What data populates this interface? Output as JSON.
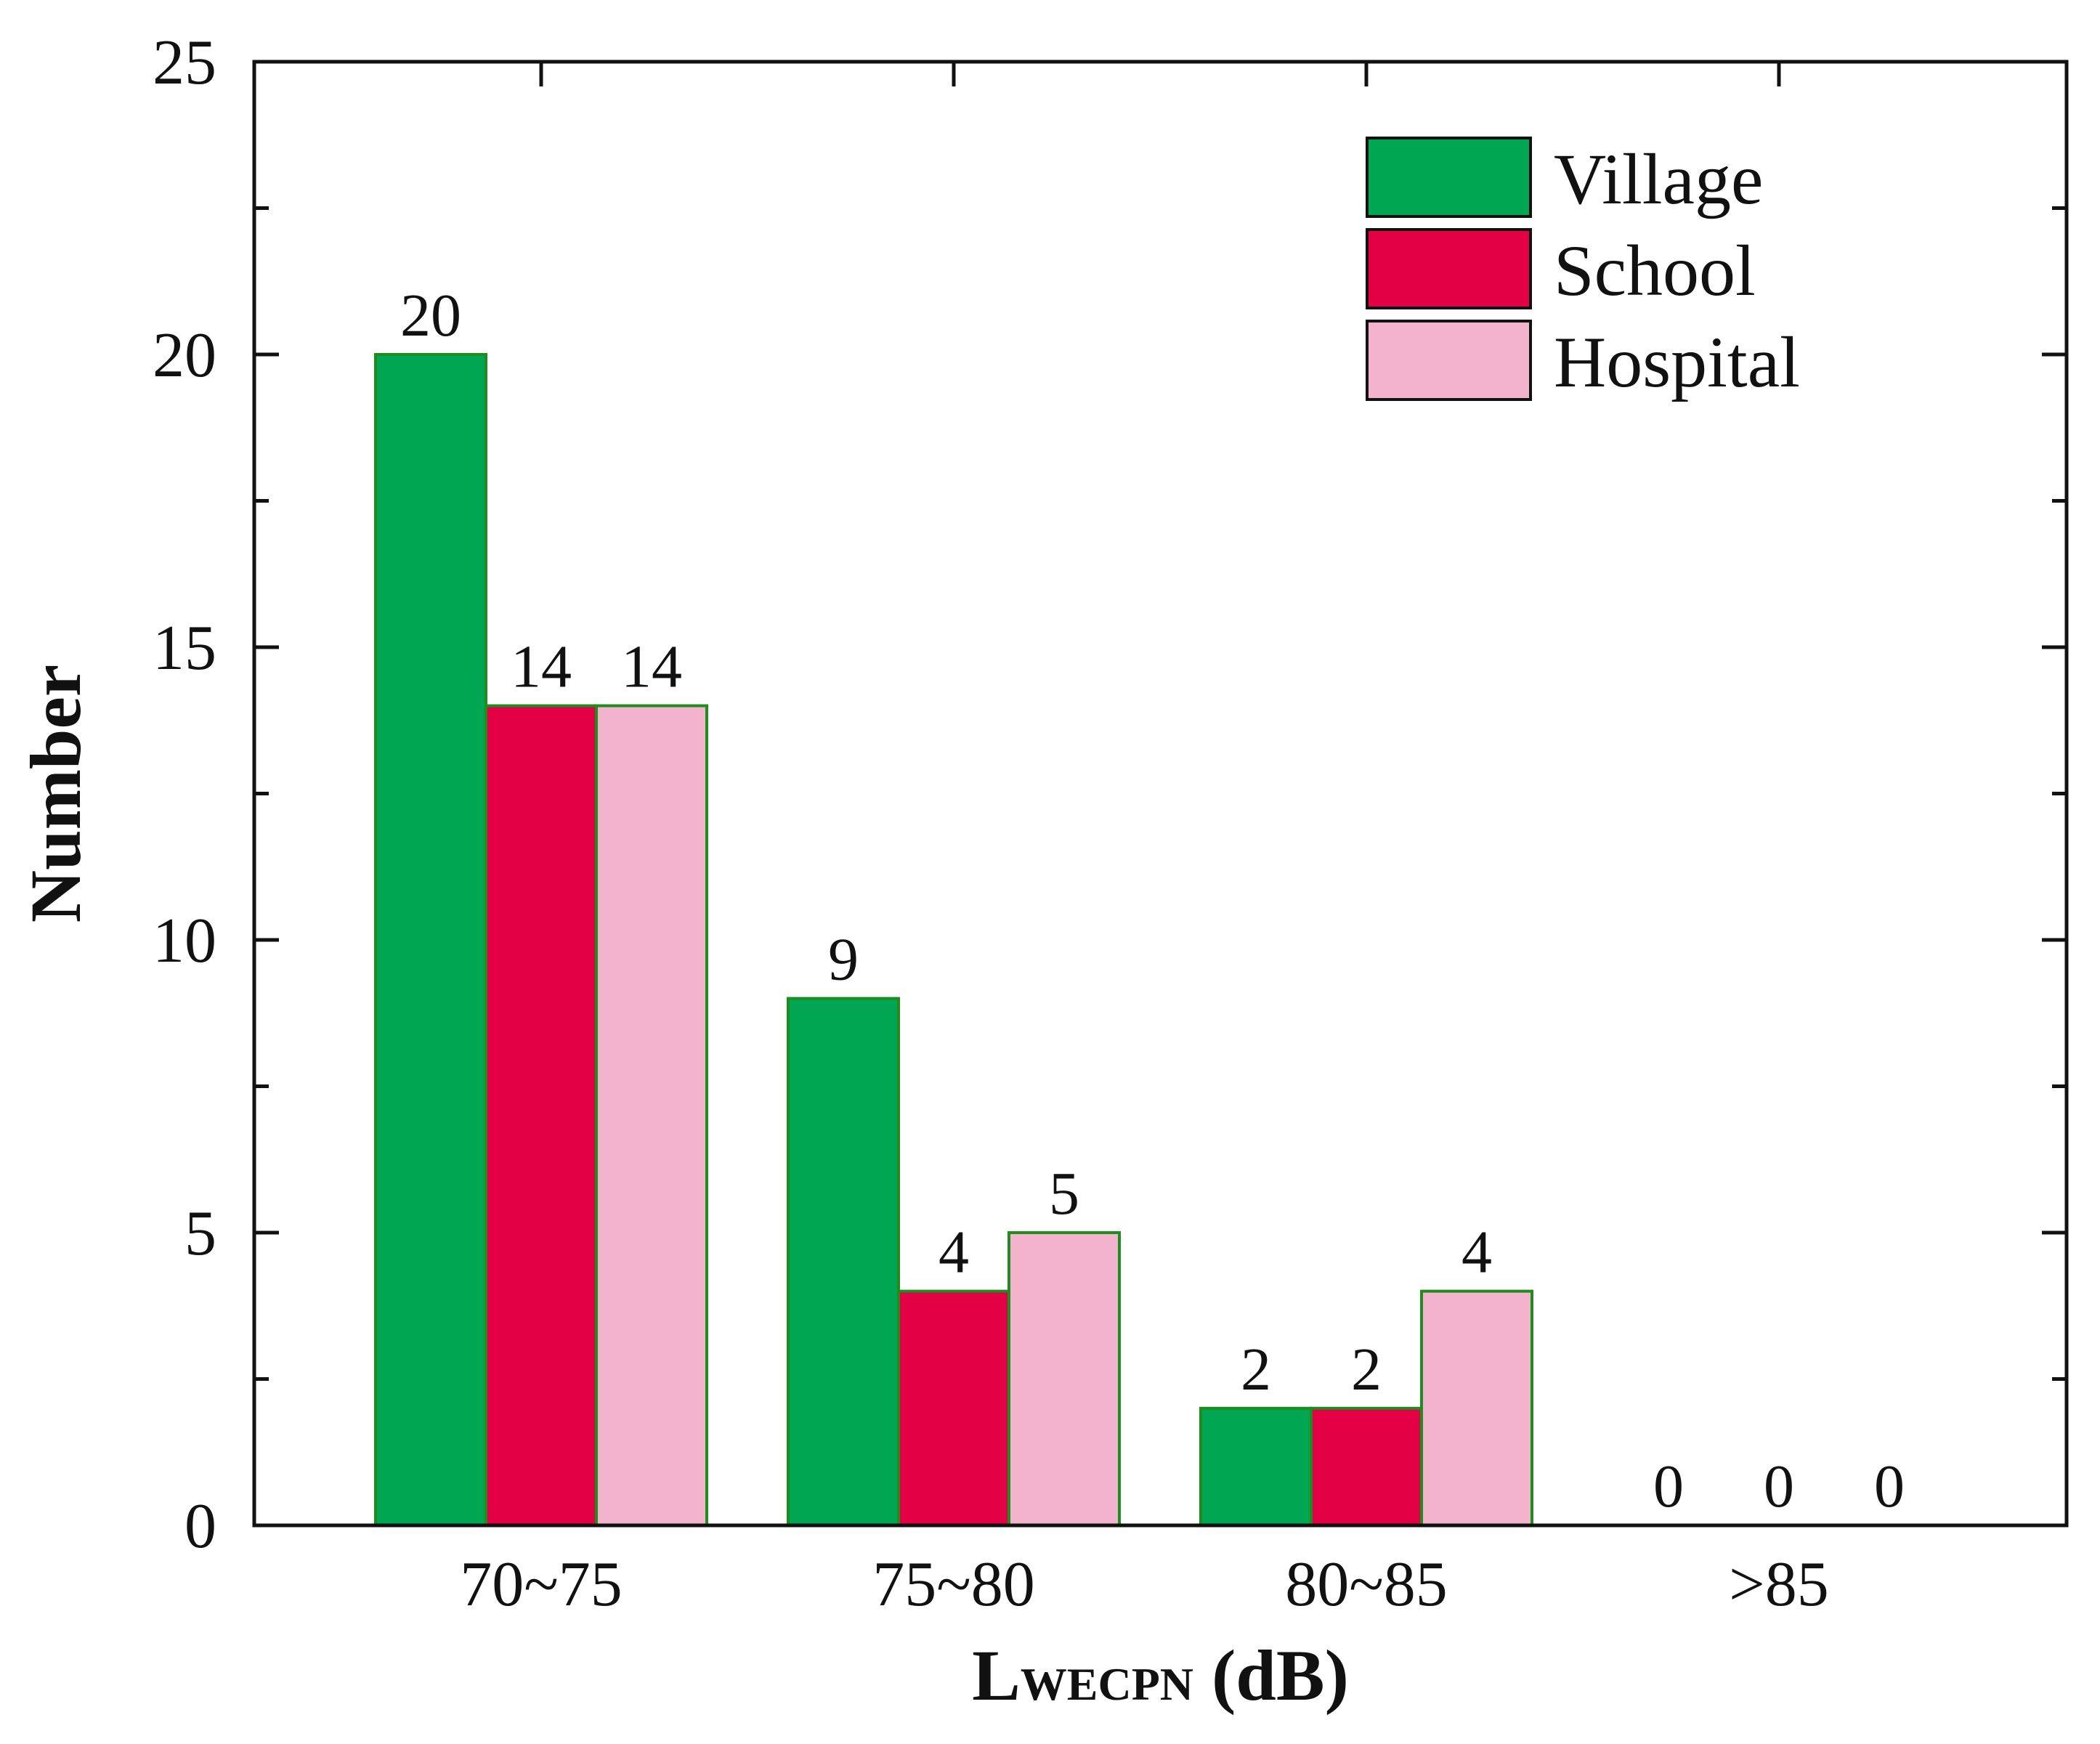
{
  "chart_data": {
    "type": "bar",
    "title": "",
    "categories": [
      "70~75",
      "75~80",
      "80~85",
      ">85"
    ],
    "series": [
      {
        "name": "Village",
        "values": [
          20,
          9,
          2,
          0
        ],
        "color": "#00A651"
      },
      {
        "name": "School",
        "values": [
          14,
          4,
          2,
          0
        ],
        "color": "#E30045"
      },
      {
        "name": "Hospital",
        "values": [
          14,
          5,
          4,
          0
        ],
        "color": "#F3B3CD"
      }
    ],
    "xlabel": {
      "main": "L",
      "subscript": "WECPN",
      "suffix": " (dB)"
    },
    "ylabel": "Number",
    "ylim": [
      0,
      25
    ],
    "yticks": [
      0,
      5,
      10,
      15,
      20,
      25
    ],
    "y_minor_step": 2.5,
    "legend_position": "top-right",
    "bar_edge_color": "#1E8C1E",
    "data_labels": true,
    "grid": false
  }
}
